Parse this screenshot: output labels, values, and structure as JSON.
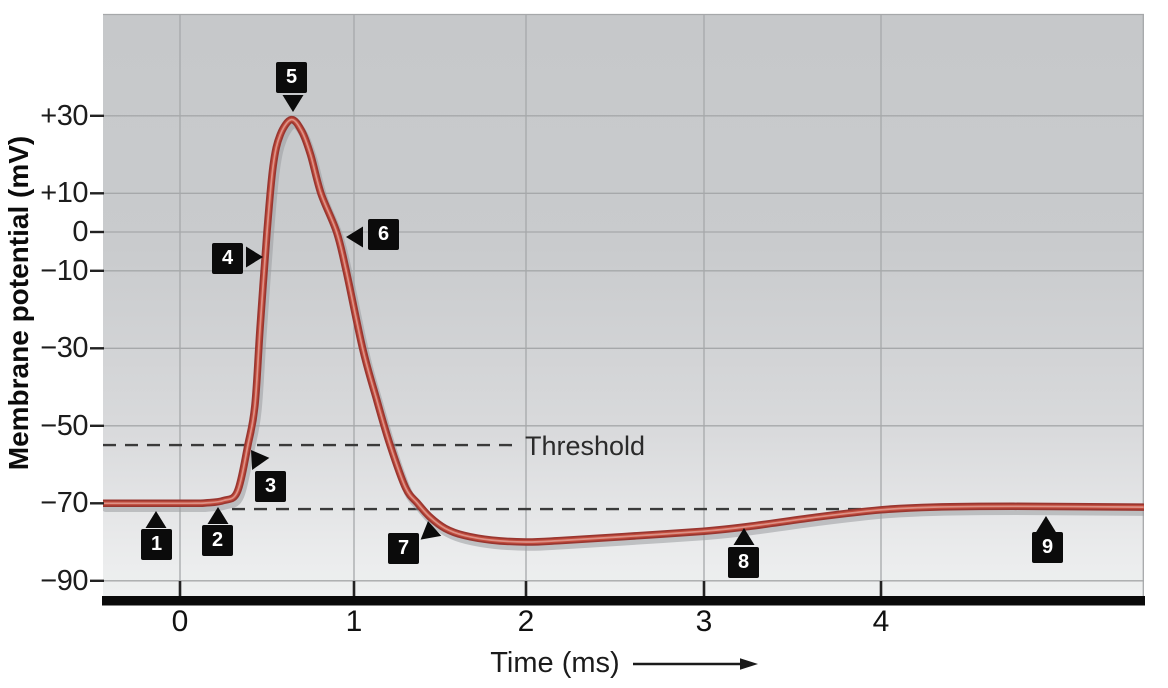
{
  "figure": {
    "y_axis_title": "Membrane potential (mV)",
    "x_axis_title": "Time (ms)",
    "threshold_label": "Threshold"
  },
  "colors": {
    "curve_outer": "#993630",
    "curve_mid": "#c04b3c",
    "curve_core": "#dd9287",
    "curve_shadow": "#9b9da0",
    "gridline": "#a6a8aa",
    "dashed_line": "#3a3a3a",
    "axis_bar": "#0a0a0a",
    "tick": "#222222",
    "marker_bg": "#0b0b0b",
    "marker_text": "#ffffff",
    "text": "#1b1b1b",
    "plot_bg_top": "#c6c8ca",
    "plot_bg_bottom": "#eef0f0"
  },
  "chart_data": {
    "type": "line",
    "title": "",
    "xlabel": "Time (ms)",
    "ylabel": "Membrane potential (mV)",
    "x_unit": "ms",
    "y_unit": "mV",
    "xlim_ms": [
      -0.45,
      5.5
    ],
    "ylim_mV": [
      -95,
      56
    ],
    "grid": true,
    "legend": "none",
    "x_ticks": [
      {
        "label": "0",
        "ms": 0
      },
      {
        "label": "1",
        "ms": 1
      },
      {
        "label": "2",
        "ms": 2
      },
      {
        "label": "3",
        "ms": 3
      },
      {
        "label": "4",
        "ms": 4
      }
    ],
    "y_ticks": [
      {
        "label": "+30",
        "mV": 30
      },
      {
        "label": "+10",
        "mV": 10
      },
      {
        "label": "0",
        "mV": 0
      },
      {
        "label": "−10",
        "mV": -10
      },
      {
        "label": "−30",
        "mV": -30
      },
      {
        "label": "−50",
        "mV": -50
      },
      {
        "label": "−70",
        "mV": -70
      },
      {
        "label": "−90",
        "mV": -90
      }
    ],
    "reference_lines": [
      {
        "name": "threshold",
        "label": "Threshold",
        "mV": -55,
        "style": "dashed"
      },
      {
        "name": "resting-level",
        "label": "",
        "mV": -71.5,
        "style": "dashed"
      }
    ],
    "series": [
      {
        "name": "membrane-potential",
        "color": "#c04b3c",
        "resting_mV": -70,
        "peak_mV": 30,
        "hyperpolarization_min_mV": -80,
        "points_t_ms_mV": [
          [
            -0.44,
            -70
          ],
          [
            0.05,
            -70
          ],
          [
            0.15,
            -69.9
          ],
          [
            0.25,
            -69.3
          ],
          [
            0.33,
            -67
          ],
          [
            0.39,
            -55
          ],
          [
            0.43,
            -45
          ],
          [
            0.46,
            -25
          ],
          [
            0.5,
            0
          ],
          [
            0.535,
            17
          ],
          [
            0.575,
            25
          ],
          [
            0.64,
            29
          ],
          [
            0.7,
            26
          ],
          [
            0.75,
            20
          ],
          [
            0.81,
            10
          ],
          [
            0.9,
            0
          ],
          [
            0.955,
            -10
          ],
          [
            1.05,
            -30
          ],
          [
            1.13,
            -43
          ],
          [
            1.21,
            -55
          ],
          [
            1.3,
            -66
          ],
          [
            1.37,
            -70
          ],
          [
            1.44,
            -73.5
          ],
          [
            1.53,
            -76.5
          ],
          [
            1.64,
            -78.3
          ],
          [
            1.8,
            -79.5
          ],
          [
            2.0,
            -80
          ],
          [
            2.2,
            -79.6
          ],
          [
            2.55,
            -78.6
          ],
          [
            3.0,
            -77.2
          ],
          [
            3.25,
            -76
          ],
          [
            3.65,
            -73.5
          ],
          [
            4.0,
            -71.7
          ],
          [
            4.3,
            -71
          ],
          [
            4.75,
            -70.8
          ],
          [
            5.48,
            -71
          ]
        ]
      }
    ],
    "markers": [
      {
        "label": "1",
        "t_ms": -0.14
      },
      {
        "label": "2",
        "t_ms": 0.22
      },
      {
        "label": "3",
        "t_ms": 0.4
      },
      {
        "label": "4",
        "t_ms": 0.47
      },
      {
        "label": "5",
        "t_ms": 0.64
      },
      {
        "label": "6",
        "t_ms": 0.96
      },
      {
        "label": "7",
        "t_ms": 1.43
      },
      {
        "label": "8",
        "t_ms": 3.22
      },
      {
        "label": "9",
        "t_ms": 4.93
      }
    ]
  }
}
